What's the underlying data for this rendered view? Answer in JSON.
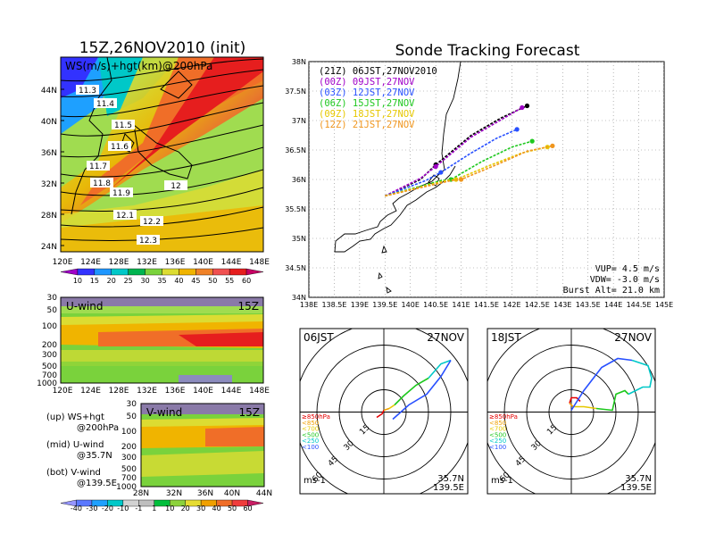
{
  "left": {
    "title": "15Z,26NOV2010 (init)",
    "map_panel": {
      "label": "WS(m/s)+hgt(km)@200hPa",
      "lat_ticks": [
        "44N",
        "40N",
        "36N",
        "32N",
        "28N",
        "24N"
      ],
      "lon_ticks": [
        "120E",
        "124E",
        "128E",
        "132E",
        "136E",
        "140E",
        "144E",
        "148E"
      ],
      "contour_labels": [
        "11.3",
        "11.4",
        "11.5",
        "11.6",
        "11.7",
        "11.8",
        "11.9",
        "12",
        "12.1",
        "12.2",
        "12.3"
      ]
    },
    "ws_colorbar": {
      "labels": [
        "10",
        "15",
        "20",
        "25",
        "30",
        "35",
        "40",
        "45",
        "50",
        "55",
        "60"
      ],
      "colors": [
        "#a000c8",
        "#3232ff",
        "#1e96ff",
        "#00c8c8",
        "#00b450",
        "#7ad23c",
        "#dcdc32",
        "#f0b400",
        "#f08228",
        "#f05050",
        "#e61e1e",
        "#c80064"
      ]
    },
    "uwind_panel": {
      "label": "U-wind",
      "time": "15Z",
      "p_ticks": [
        "30",
        "50",
        "100",
        "200",
        "300",
        "500",
        "700",
        "1000"
      ],
      "lon_ticks": [
        "120E",
        "124E",
        "128E",
        "132E",
        "136E",
        "140E",
        "144E",
        "148E"
      ]
    },
    "vwind_panel": {
      "label": "V-wind",
      "time": "15Z",
      "p_ticks": [
        "30",
        "50",
        "100",
        "200",
        "300",
        "500",
        "700",
        "1000"
      ],
      "lat_ticks": [
        "28N",
        "32N",
        "36N",
        "40N",
        "44N"
      ]
    },
    "notes": [
      {
        "title": "(up) WS+hgt",
        "sub": "@200hPa"
      },
      {
        "title": "(mid) U-wind",
        "sub": "@35.7N"
      },
      {
        "title": "(bot) V-wind",
        "sub": "@139.5E"
      }
    ],
    "wind_colorbar": {
      "labels": [
        "-40",
        "-30",
        "-20",
        "-10",
        "-1",
        "1",
        "10",
        "20",
        "30",
        "40",
        "50",
        "60"
      ],
      "colors": [
        "#9696ff",
        "#5a78ff",
        "#1ea0ff",
        "#00c8c8",
        "#d2d2d2",
        "#bebebe",
        "#00be3c",
        "#8cd23c",
        "#e6dc32",
        "#f0a000",
        "#f06e28",
        "#f03c3c",
        "#c81e64"
      ]
    }
  },
  "right": {
    "title": "Sonde Tracking Forecast",
    "chart_data": {
      "type": "line",
      "xlabel": "",
      "ylabel": "",
      "xlim": [
        138,
        145
      ],
      "ylim": [
        34,
        38
      ],
      "x_tick_labels": [
        "138E",
        "138.5E",
        "139E",
        "139.5E",
        "140E",
        "140.5E",
        "141E",
        "141.5E",
        "142E",
        "142.5E",
        "143E",
        "143.5E",
        "144E",
        "144.5E",
        "145E"
      ],
      "y_tick_labels": [
        "34N",
        "34.5N",
        "35N",
        "35.5N",
        "36N",
        "36.5N",
        "37N",
        "37.5N",
        "38N"
      ],
      "series": [
        {
          "name": "(21Z) 06JST,27NOV2010",
          "color": "#000000",
          "x": [
            139.5,
            140.2,
            140.5,
            141.2,
            141.8,
            142.3
          ],
          "y": [
            35.72,
            36.0,
            36.25,
            36.75,
            37.05,
            37.25
          ]
        },
        {
          "name": "(00Z) 09JST,27NOV",
          "color": "#a000c8",
          "x": [
            139.5,
            140.2,
            140.5,
            141.2,
            141.8,
            142.2
          ],
          "y": [
            35.72,
            36.02,
            36.22,
            36.72,
            37.02,
            37.22
          ]
        },
        {
          "name": "(03Z) 12JST,27NOV",
          "color": "#2850ff",
          "x": [
            139.5,
            140.3,
            140.6,
            141.2,
            141.7,
            142.1
          ],
          "y": [
            35.72,
            35.98,
            36.12,
            36.45,
            36.7,
            36.85
          ]
        },
        {
          "name": "(06Z) 15JST,27NOV",
          "color": "#1ec81e",
          "x": [
            139.5,
            140.6,
            140.8,
            141.4,
            142.0,
            142.4
          ],
          "y": [
            35.72,
            35.98,
            36.0,
            36.3,
            36.55,
            36.65
          ]
        },
        {
          "name": "(09Z) 18JST,27NOV",
          "color": "#e6c800",
          "x": [
            139.5,
            140.7,
            140.9,
            141.6,
            142.2,
            142.7
          ],
          "y": [
            35.72,
            35.98,
            36.0,
            36.25,
            36.45,
            36.55
          ]
        },
        {
          "name": "(12Z) 21JST,27NOV",
          "color": "#f0961e",
          "x": [
            139.5,
            140.8,
            141.0,
            141.7,
            142.3,
            142.8
          ],
          "y": [
            35.72,
            35.98,
            36.0,
            36.25,
            36.48,
            36.57
          ]
        }
      ]
    },
    "info": {
      "vup": "VUP= 4.5 m/s",
      "vdw": "VDW= -3.0 m/s",
      "burst": "Burst Alt= 21.0 km"
    },
    "hodo_left": {
      "time": "06JST",
      "date": "27NOV",
      "lat": "35.7N",
      "lon": "139.5E",
      "unit": "ms-1",
      "ring_labels": [
        "15",
        "30",
        "45",
        "60"
      ],
      "levels": [
        {
          "t": "≥850hPa",
          "c": "#e60000"
        },
        {
          "t": "<850",
          "c": "#f0a000"
        },
        {
          "t": "<700",
          "c": "#e6c800"
        },
        {
          "t": "<500",
          "c": "#1ec81e"
        },
        {
          "t": "<250",
          "c": "#00c8c8"
        },
        {
          "t": "<100",
          "c": "#2850ff"
        }
      ]
    },
    "hodo_right": {
      "time": "18JST",
      "date": "27NOV",
      "lat": "35.7N",
      "lon": "139.5E",
      "unit": "ms-1",
      "ring_labels": [
        "15",
        "30",
        "45",
        "60"
      ],
      "levels": [
        {
          "t": "≥850hPa",
          "c": "#e60000"
        },
        {
          "t": "<850",
          "c": "#f0a000"
        },
        {
          "t": "<700",
          "c": "#e6c800"
        },
        {
          "t": "<500",
          "c": "#1ec81e"
        },
        {
          "t": "<250",
          "c": "#00c8c8"
        },
        {
          "t": "<100",
          "c": "#2850ff"
        }
      ]
    }
  }
}
